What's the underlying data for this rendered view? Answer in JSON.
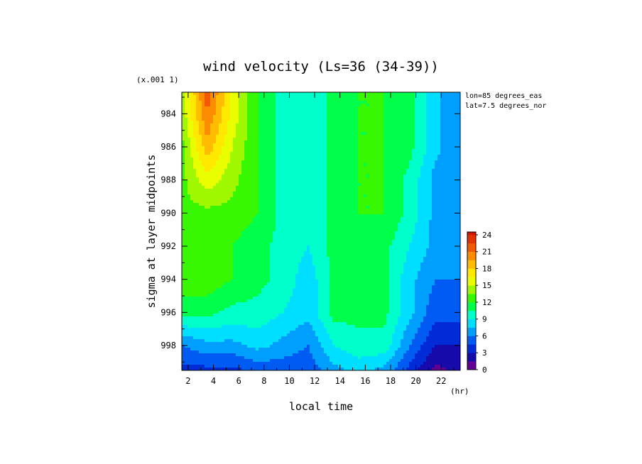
{
  "chart_data": {
    "type": "heatmap",
    "title": "wind velocity (Ls=36 (34-39))",
    "xlabel": "local time",
    "ylabel": "sigma at layer midpoints",
    "x_unit_label": "(hr)",
    "y_scale_label": "(x.001 1)",
    "annotations": [
      "lon=85 degrees_eas",
      "lat=7.5 degrees_nor"
    ],
    "x_ticks": [
      "2",
      "4",
      "6",
      "8",
      "10",
      "12",
      "14",
      "16",
      "18",
      "20",
      "22"
    ],
    "y_ticks": [
      "984",
      "986",
      "988",
      "990",
      "992",
      "994",
      "996",
      "998"
    ],
    "xlim": [
      1.5,
      23.5
    ],
    "ylim": [
      982.7,
      999.5
    ],
    "y_inverted": true,
    "colorbar": {
      "min": 0,
      "max": 24.5,
      "tick_values": [
        0,
        3,
        6,
        9,
        12,
        15,
        18,
        21,
        24
      ],
      "tick_labels": [
        "0",
        "3",
        "6",
        "9",
        "12",
        "15",
        "18",
        "21",
        "24"
      ]
    },
    "x": [
      1.5,
      3.5,
      5.5,
      7.5,
      9.5,
      11.5,
      13.5,
      15.5,
      17.5,
      19.5,
      21.5,
      23.5
    ],
    "y": [
      982.7,
      984,
      986,
      988,
      990,
      992,
      994,
      996,
      998,
      999.5
    ],
    "values": [
      [
        14,
        22,
        16,
        12,
        10,
        9,
        11,
        12,
        12,
        11,
        8,
        6
      ],
      [
        14,
        21,
        16,
        12,
        10,
        9,
        11,
        12,
        12,
        11,
        8,
        6
      ],
      [
        13,
        19,
        15,
        12,
        10,
        9,
        11,
        12,
        12,
        11,
        8,
        6
      ],
      [
        13,
        16,
        14,
        12,
        10,
        9,
        11,
        12,
        12,
        10,
        7,
        6
      ],
      [
        13,
        13,
        13,
        12,
        10,
        9,
        11,
        12,
        12,
        10,
        7,
        6
      ],
      [
        13,
        13,
        12,
        11,
        10,
        9,
        11,
        11,
        11,
        9,
        7,
        6
      ],
      [
        13,
        13,
        12,
        11,
        10,
        8,
        11,
        11,
        11,
        8,
        6,
        6
      ],
      [
        11,
        11,
        10,
        10,
        9,
        8,
        11,
        11,
        11,
        8,
        5,
        5
      ],
      [
        6,
        7,
        7,
        8,
        7,
        6,
        9,
        10,
        10,
        6,
        3,
        3
      ],
      [
        4,
        4,
        4,
        5,
        5,
        5,
        7,
        8,
        7,
        4,
        1,
        2
      ]
    ]
  }
}
